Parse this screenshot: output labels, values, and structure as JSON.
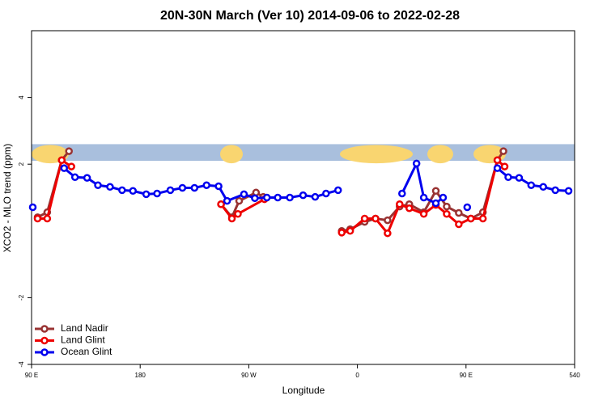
{
  "chart_data": {
    "type": "line",
    "title": "20N-30N March (Ver 10)   2014-09-06 to 2022-02-28",
    "x_label": "Longitude",
    "y_label": "XCO2 - MLO trend (ppm)",
    "xlim": [
      90,
      540
    ],
    "xticks": [
      {
        "value": 90,
        "label": "90 E"
      },
      180,
      {
        "value": 270,
        "label": "90 W"
      },
      {
        "value": 360,
        "label": "0"
      },
      {
        "value": 450,
        "label": "90 E"
      },
      540
    ],
    "ylim": [
      -4,
      6
    ],
    "yticks": [
      -4,
      -2,
      2,
      4
    ],
    "legend": "bottom-left",
    "series": [
      {
        "name": "Land Nadir",
        "color": "#993333",
        "x": [
          95,
          103,
          115,
          121,
          180,
          247,
          256,
          262,
          276,
          282,
          320,
          347,
          354,
          366,
          375,
          385,
          395,
          403,
          415,
          425,
          434,
          444,
          454,
          464,
          476,
          481
        ],
        "values": [
          0.41,
          0.56,
          2.12,
          2.39,
          null,
          0.8,
          0.41,
          0.9,
          1.15,
          1.02,
          null,
          0,
          0.05,
          0.27,
          0.37,
          0.32,
          0.73,
          0.8,
          0.56,
          1.2,
          0.73,
          0.54,
          0.37,
          0.56,
          2.12,
          2.39
        ]
      },
      {
        "name": "Land Glint",
        "color": "#ee0000",
        "x": [
          95,
          103,
          115,
          123,
          180,
          247,
          256,
          261,
          283,
          320,
          347,
          354,
          366,
          375,
          385,
          395,
          403,
          415,
          425,
          434,
          444,
          454,
          464,
          476,
          482
        ],
        "values": [
          0.37,
          0.37,
          2.12,
          1.93,
          null,
          0.8,
          0.37,
          0.51,
          0.95,
          null,
          -0.05,
          0,
          0.37,
          0.37,
          -0.07,
          0.8,
          0.68,
          0.51,
          0.78,
          0.51,
          0.2,
          0.37,
          0.37,
          2.12,
          1.93
        ]
      },
      {
        "name": "Ocean Glint",
        "color": "#0000ee",
        "x": [
          91,
          100,
          117,
          126,
          136,
          145,
          155,
          165,
          174,
          185,
          194,
          205,
          215,
          225,
          235,
          245,
          252,
          266,
          275,
          285,
          294,
          304,
          315,
          325,
          334,
          344,
          370,
          397,
          409,
          415,
          425,
          431,
          440,
          451,
          460,
          476,
          485,
          494,
          504,
          514,
          524,
          535
        ],
        "values": [
          0.71,
          null,
          1.88,
          1.61,
          1.59,
          1.37,
          1.32,
          1.22,
          1.2,
          1.1,
          1.12,
          1.22,
          1.29,
          1.29,
          1.37,
          1.34,
          0.9,
          1.1,
          0.98,
          1.0,
          1.0,
          1.0,
          1.07,
          1.02,
          1.12,
          1.22,
          null,
          1.12,
          2.02,
          1.0,
          0.83,
          1.0,
          null,
          0.71,
          null,
          1.88,
          1.61,
          1.59,
          1.37,
          1.32,
          1.22,
          1.2
        ]
      }
    ]
  }
}
